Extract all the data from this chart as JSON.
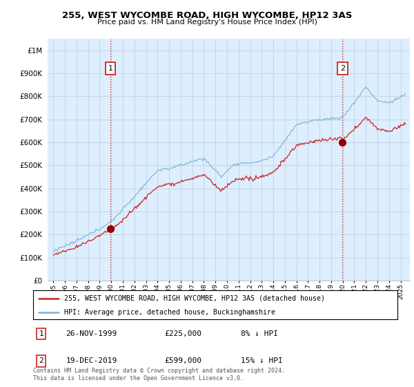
{
  "title": "255, WEST WYCOMBE ROAD, HIGH WYCOMBE, HP12 3AS",
  "subtitle": "Price paid vs. HM Land Registry's House Price Index (HPI)",
  "ytick_values": [
    0,
    100000,
    200000,
    300000,
    400000,
    500000,
    600000,
    700000,
    800000,
    900000,
    1000000
  ],
  "ylim": [
    0,
    1050000
  ],
  "hpi_color": "#7ab3d4",
  "price_color": "#cc2222",
  "vline_color": "#cc4444",
  "grid_color": "#c8d8e8",
  "bg_color": "#ddeeff",
  "sale1_x": 1999.92,
  "sale1_y": 225000,
  "sale2_x": 2019.97,
  "sale2_y": 599000,
  "legend_entry1": "255, WEST WYCOMBE ROAD, HIGH WYCOMBE, HP12 3AS (detached house)",
  "legend_entry2": "HPI: Average price, detached house, Buckinghamshire",
  "table_row1": [
    "1",
    "26-NOV-1999",
    "£225,000",
    "8% ↓ HPI"
  ],
  "table_row2": [
    "2",
    "19-DEC-2019",
    "£599,000",
    "15% ↓ HPI"
  ],
  "footnote": "Contains HM Land Registry data © Crown copyright and database right 2024.\nThis data is licensed under the Open Government Licence v3.0.",
  "xlim_start": 1994.5,
  "xlim_end": 2025.8
}
